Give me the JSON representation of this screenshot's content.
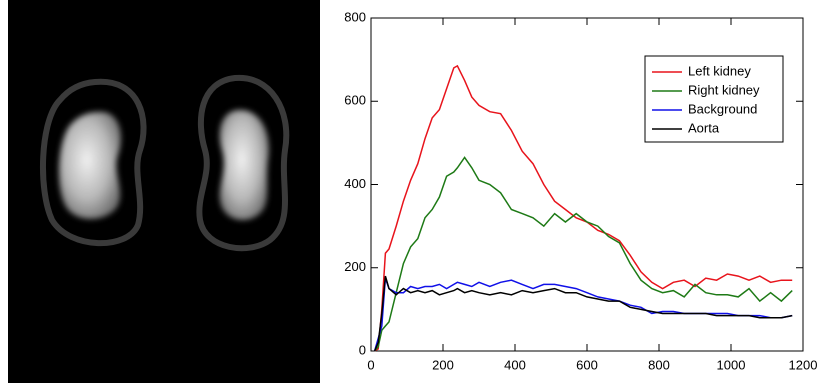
{
  "chart_data": {
    "type": "line",
    "x": [
      10,
      20,
      30,
      40,
      50,
      70,
      90,
      110,
      130,
      150,
      170,
      190,
      210,
      230,
      240,
      260,
      280,
      300,
      330,
      360,
      390,
      420,
      450,
      480,
      510,
      540,
      570,
      600,
      630,
      660,
      690,
      720,
      750,
      780,
      810,
      840,
      870,
      900,
      930,
      960,
      990,
      1020,
      1050,
      1080,
      1110,
      1140,
      1170
    ],
    "series": [
      {
        "name": "Left kidney",
        "color": "#e8141c",
        "values": [
          0,
          5,
          100,
          235,
          245,
          300,
          360,
          410,
          450,
          510,
          560,
          580,
          630,
          680,
          685,
          650,
          610,
          590,
          575,
          570,
          530,
          480,
          450,
          400,
          360,
          340,
          320,
          310,
          290,
          280,
          265,
          230,
          190,
          165,
          150,
          165,
          170,
          155,
          175,
          170,
          185,
          180,
          170,
          180,
          165,
          170,
          170
        ]
      },
      {
        "name": "Right kidney",
        "color": "#1e7a16",
        "values": [
          0,
          10,
          50,
          60,
          70,
          140,
          210,
          250,
          270,
          320,
          340,
          370,
          420,
          430,
          440,
          465,
          440,
          410,
          400,
          380,
          340,
          330,
          320,
          300,
          330,
          310,
          330,
          310,
          300,
          275,
          260,
          210,
          170,
          150,
          140,
          145,
          130,
          160,
          140,
          135,
          135,
          130,
          150,
          120,
          140,
          120,
          145
        ]
      },
      {
        "name": "Background",
        "color": "#1010e8",
        "values": [
          0,
          30,
          60,
          175,
          150,
          140,
          140,
          155,
          150,
          155,
          155,
          160,
          150,
          160,
          165,
          160,
          155,
          165,
          155,
          165,
          170,
          160,
          150,
          160,
          160,
          155,
          150,
          140,
          130,
          125,
          120,
          110,
          105,
          90,
          95,
          95,
          90,
          90,
          90,
          90,
          90,
          85,
          85,
          85,
          80,
          80,
          85
        ]
      },
      {
        "name": "Aorta",
        "color": "#000000",
        "values": [
          0,
          20,
          90,
          180,
          150,
          135,
          150,
          140,
          145,
          140,
          145,
          135,
          140,
          145,
          150,
          140,
          145,
          140,
          135,
          140,
          135,
          145,
          140,
          145,
          150,
          140,
          140,
          130,
          125,
          120,
          120,
          105,
          100,
          95,
          90,
          90,
          90,
          90,
          90,
          85,
          85,
          85,
          85,
          80,
          80,
          80,
          85
        ]
      }
    ],
    "xlim": [
      0,
      1200
    ],
    "xticks": [
      0,
      200,
      400,
      600,
      800,
      1000,
      1200
    ],
    "ylim": [
      0,
      800
    ],
    "yticks": [
      0,
      200,
      400,
      600,
      800
    ],
    "legend": "upper right",
    "grid": false
  }
}
